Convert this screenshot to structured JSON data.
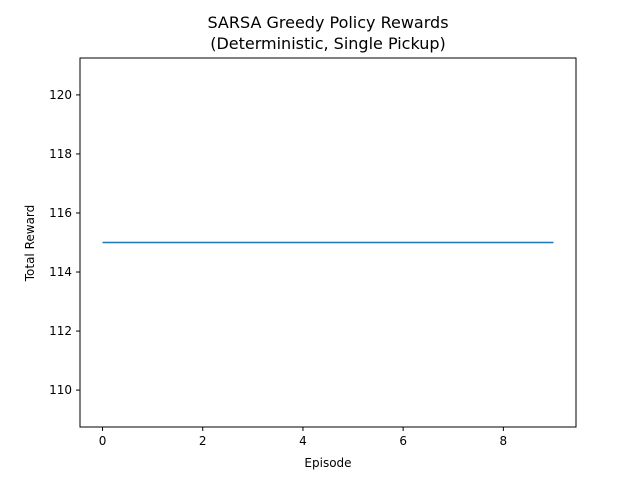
{
  "chart_data": {
    "type": "line",
    "title_line1": "SARSA Greedy Policy Rewards",
    "title_line2": "(Deterministic, Single Pickup)",
    "xlabel": "Episode",
    "ylabel": "Total Reward",
    "x": [
      0,
      1,
      2,
      3,
      4,
      5,
      6,
      7,
      8,
      9
    ],
    "series": [
      {
        "values": [
          115,
          115,
          115,
          115,
          115,
          115,
          115,
          115,
          115,
          115
        ],
        "color": "#1f77b4"
      }
    ],
    "xlim": [
      -0.45,
      9.45
    ],
    "ylim": [
      108.75,
      121.25
    ],
    "xticks": [
      0,
      2,
      4,
      6,
      8
    ],
    "yticks": [
      110,
      112,
      114,
      116,
      118,
      120
    ],
    "grid": false,
    "legend": "none"
  }
}
